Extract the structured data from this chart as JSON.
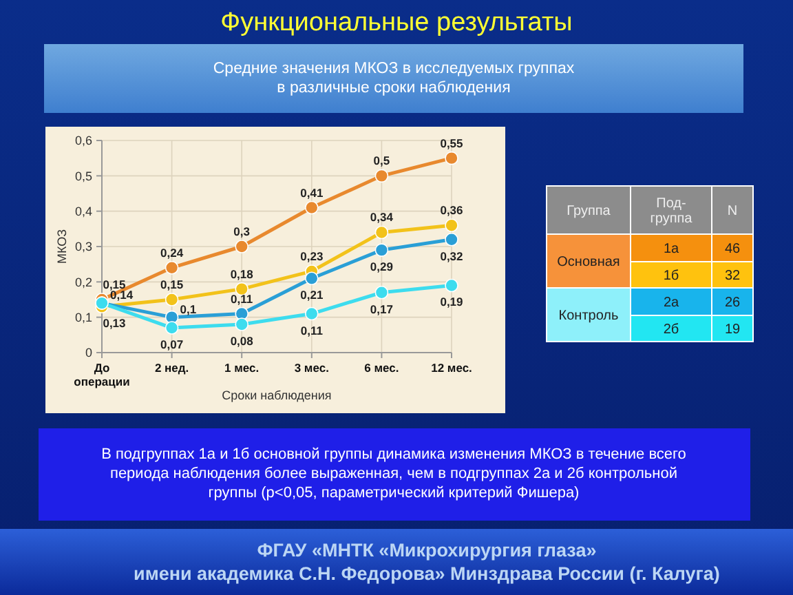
{
  "chart_data": [
    {
      "type": "line",
      "title": "Функциональные результаты",
      "subtitle": "Средние значения МКОЗ в исследуемых группах\nв различные сроки наблюдения",
      "xlabel": "Сроки наблюдения",
      "ylabel": "МКОЗ",
      "categories": [
        "До операции",
        "2 нед.",
        "1 мес.",
        "3 мес.",
        "6 мес.",
        "12 мес."
      ],
      "ylim": [
        0,
        0.6
      ],
      "yticks": [
        {
          "value": 0,
          "label": "0"
        },
        {
          "value": 0.1,
          "label": "0,1"
        },
        {
          "value": 0.2,
          "label": "0,2"
        },
        {
          "value": 0.3,
          "label": "0,3"
        },
        {
          "value": 0.4,
          "label": "0,4"
        },
        {
          "value": 0.5,
          "label": "0,5"
        },
        {
          "value": 0.6,
          "label": "0,6"
        }
      ],
      "grid": true,
      "marker": "circle",
      "series": [
        {
          "color": "#e8892e",
          "values": [
            0.15,
            0.24,
            0.3,
            0.41,
            0.5,
            0.55
          ],
          "value_labels": [
            "0,15",
            "0,24",
            "0,3",
            "0,41",
            "0,5",
            "0,55"
          ]
        },
        {
          "color": "#f2c21a",
          "values": [
            0.13,
            0.15,
            0.18,
            0.23,
            0.34,
            0.36
          ],
          "value_labels": [
            "0,13",
            "0,15",
            "0,18",
            "0,23",
            "0,34",
            "0,36"
          ]
        },
        {
          "color": "#2a9fd6",
          "values": [
            0.14,
            0.1,
            0.11,
            0.21,
            0.29,
            0.32
          ],
          "value_labels": [
            "0,14",
            "0,1",
            "0,11",
            "0,21",
            "0,29",
            "0,32"
          ]
        },
        {
          "color": "#3ddcee",
          "values": [
            0.14,
            0.07,
            0.08,
            0.11,
            0.17,
            0.19
          ],
          "value_labels": [
            null,
            "0,07",
            "0,08",
            "0,11",
            "0,17",
            "0,19"
          ]
        }
      ],
      "annotations": [
        "В подгруппах  1а и 1б основной группы динамика  изменения  МКОЗ в течение всего\nпериода  наблюдения  более выраженная,  чем в подгруппах  2а и 2б контрольной\nгруппы  (р<0,05, параметрический критерий Фишера)",
        "ФГАУ «МНТК «Микрохирургия глаза»\nимени академика С.Н. Федорова» Минздрава России (г. Калуга)"
      ]
    },
    {
      "type": "other",
      "annotations": [
        "Группа",
        "Под-группа",
        "N",
        "Основная",
        "1а",
        "46",
        "1б",
        "32",
        "Контроль",
        "2а",
        "26",
        "2б",
        "19"
      ]
    }
  ]
}
